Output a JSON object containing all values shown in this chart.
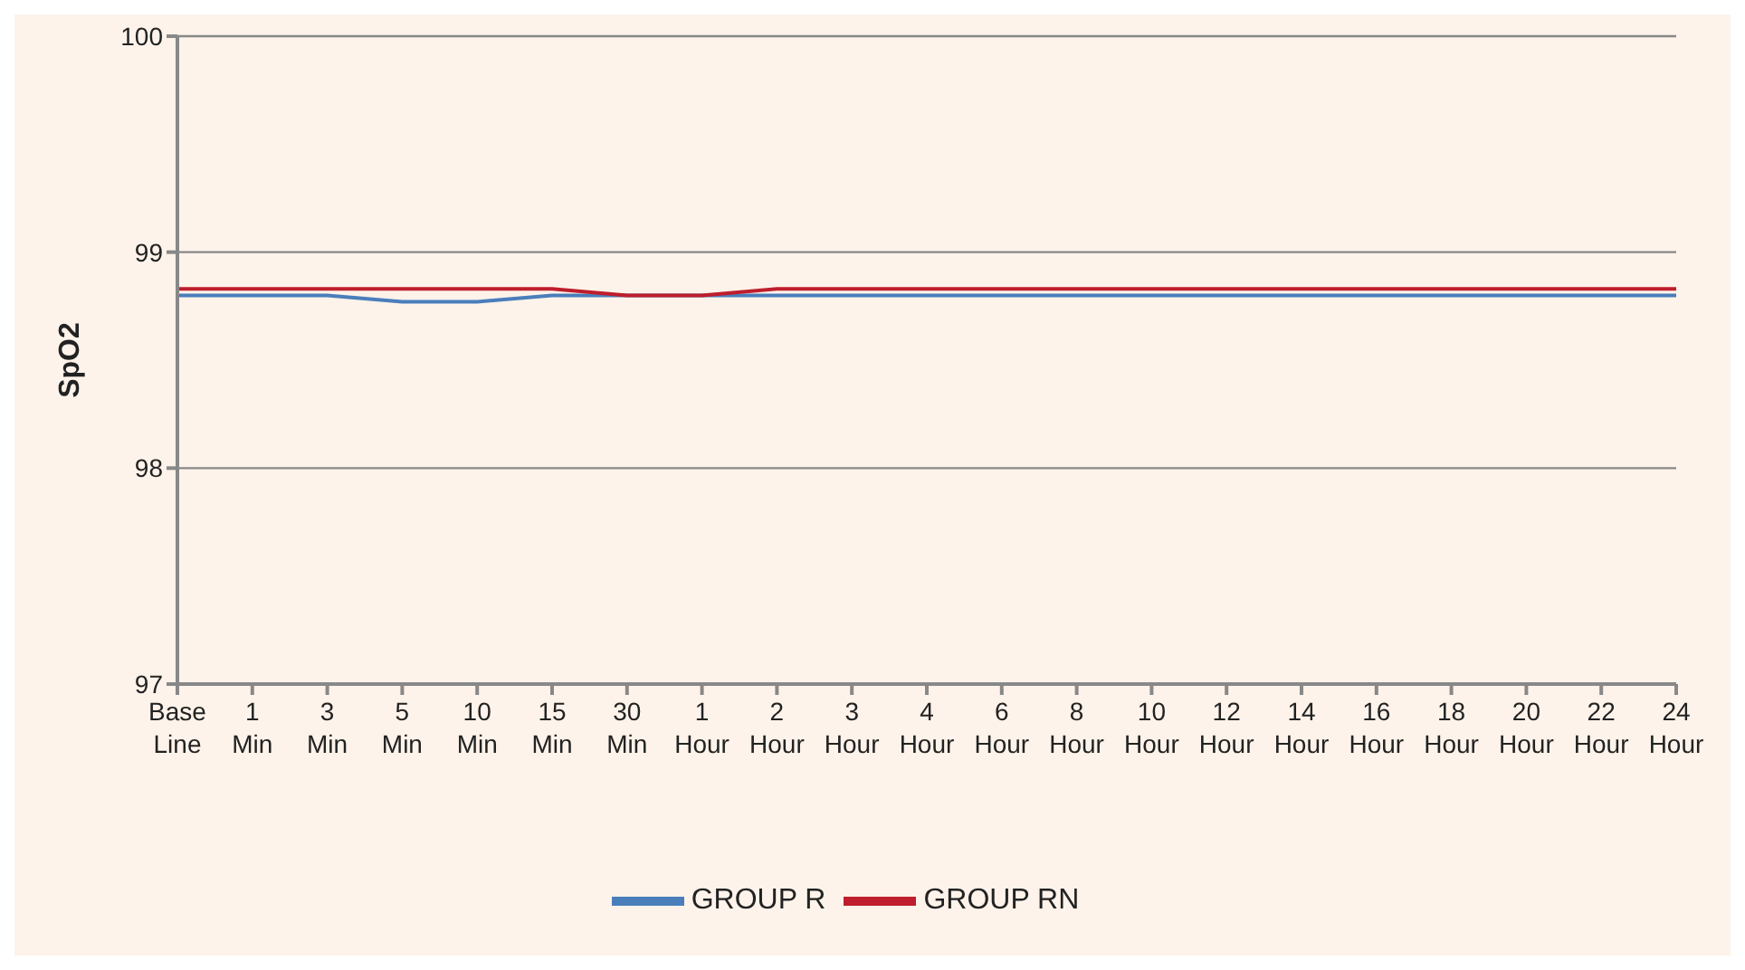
{
  "chart_data": {
    "type": "line",
    "ylabel": "SpO2",
    "categories": [
      "Base Line",
      "1 Min",
      "3 Min",
      "5 Min",
      "10 Min",
      "15 Min",
      "30 Min",
      "1 Hour",
      "2 Hour",
      "3 Hour",
      "4 Hour",
      "6 Hour",
      "8 Hour",
      "10 Hour",
      "12 Hour",
      "14 Hour",
      "16 Hour",
      "18 Hour",
      "20 Hour",
      "22 Hour",
      "24 Hour"
    ],
    "series": [
      {
        "name": "GROUP R",
        "color": "#4a7ebb",
        "values": [
          98.8,
          98.8,
          98.8,
          98.77,
          98.77,
          98.8,
          98.8,
          98.8,
          98.8,
          98.8,
          98.8,
          98.8,
          98.8,
          98.8,
          98.8,
          98.8,
          98.8,
          98.8,
          98.8,
          98.8,
          98.8
        ]
      },
      {
        "name": "GROUP RN",
        "color": "#be1e2d",
        "values": [
          98.83,
          98.83,
          98.83,
          98.83,
          98.83,
          98.83,
          98.8,
          98.8,
          98.83,
          98.83,
          98.83,
          98.83,
          98.83,
          98.83,
          98.83,
          98.83,
          98.83,
          98.83,
          98.83,
          98.83,
          98.83
        ]
      }
    ],
    "ylim": [
      97,
      100
    ],
    "yticks": [
      97,
      98,
      99,
      100
    ],
    "grid": "y",
    "legend": "bottom",
    "marker": "none"
  }
}
